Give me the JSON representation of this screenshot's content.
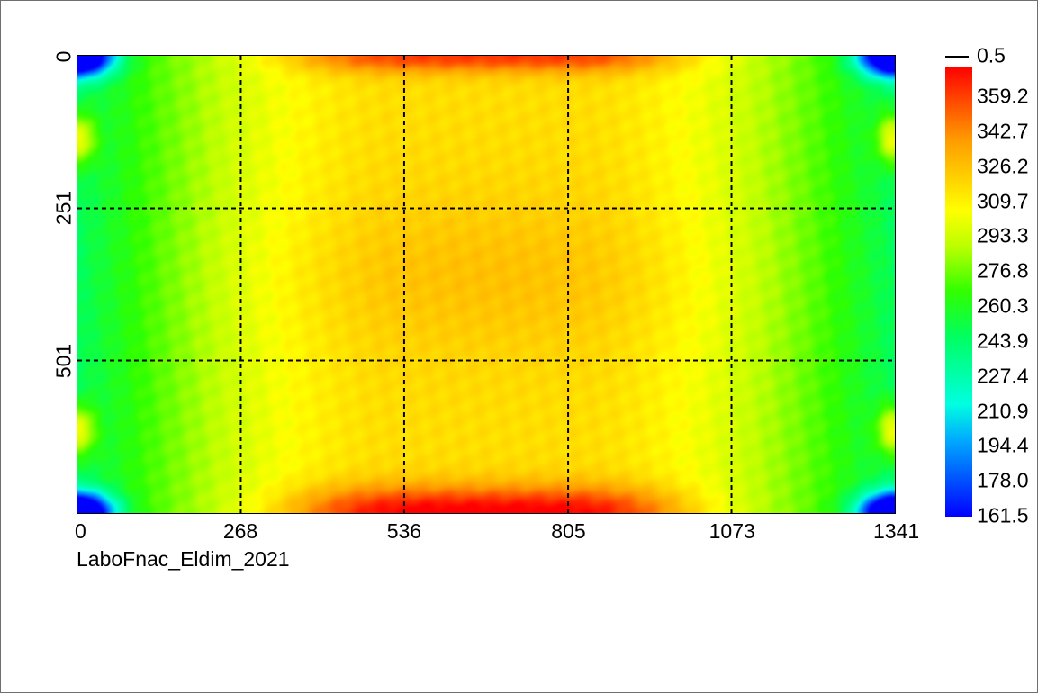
{
  "chart_data": {
    "type": "heatmap",
    "xlim": [
      0,
      1341
    ],
    "ylim": [
      0,
      752
    ],
    "x_ticks": [
      "0",
      "268",
      "536",
      "805",
      "1073",
      "1341"
    ],
    "y_ticks": [
      "0",
      "251",
      "501"
    ],
    "grid": true,
    "grid_style": "dashed",
    "colorbar": {
      "marker_label": "0.5",
      "labels": [
        "359.2",
        "342.7",
        "326.2",
        "309.7",
        "293.3",
        "276.8",
        "260.3",
        "243.9",
        "227.4",
        "210.9",
        "194.4",
        "178.0",
        "161.5"
      ],
      "min": 161.5,
      "max": 375.7
    },
    "footer": "LaboFnac_Eldim_2021"
  }
}
